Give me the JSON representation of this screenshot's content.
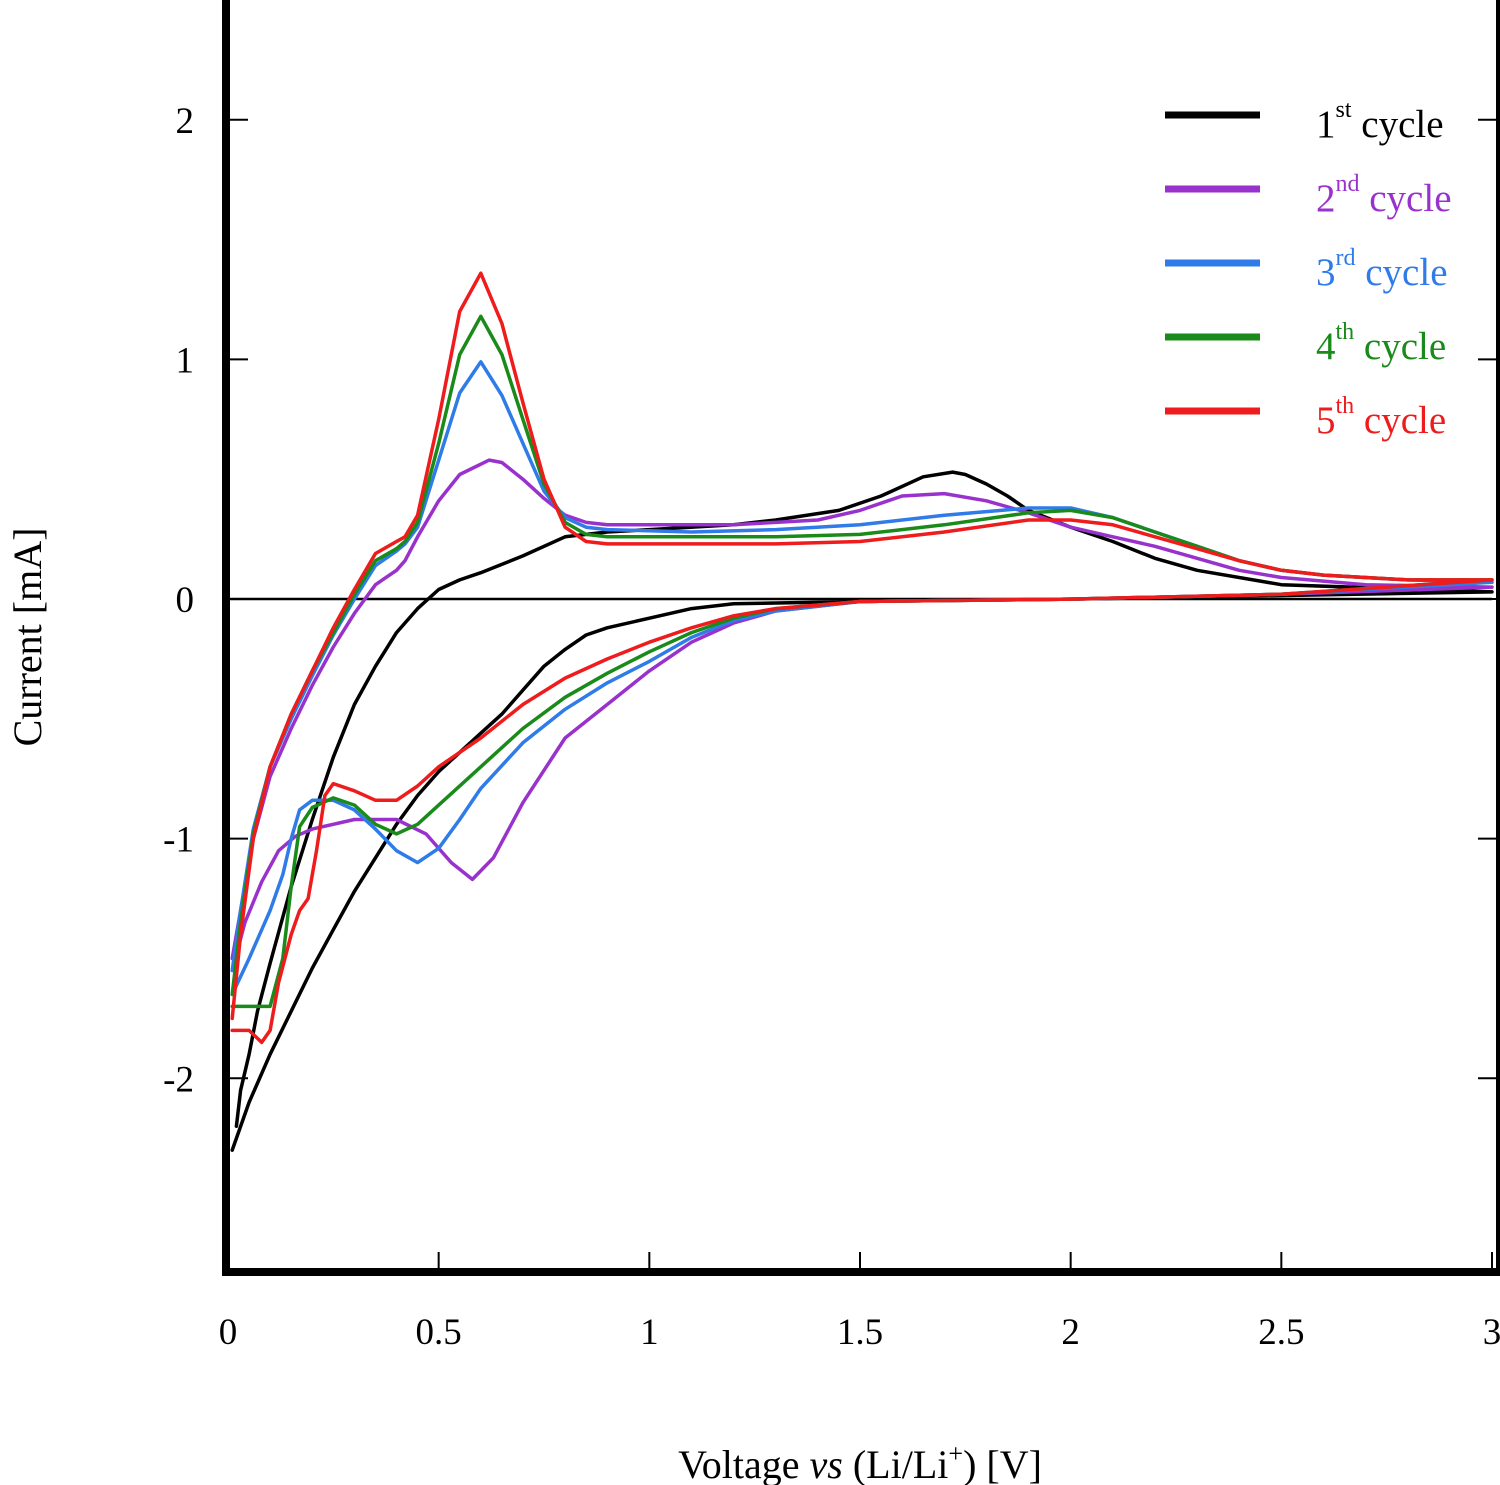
{
  "chart_data": {
    "type": "line",
    "title": "",
    "xlabel": {
      "pre": "Voltage ",
      "italic": "vs",
      "mid": " (Li/Li",
      "sup": "+",
      "post": ") [V]"
    },
    "ylabel": "Current [mA]",
    "xlim": [
      0,
      3
    ],
    "ylim": [
      -2.8,
      2.5
    ],
    "xticks": [
      0,
      0.5,
      1,
      1.5,
      2,
      2.5,
      3
    ],
    "xtick_labels": [
      "0",
      "0.5",
      "1",
      "1.5",
      "2",
      "2.5",
      "3"
    ],
    "yticks": [
      -2,
      -1,
      0,
      1,
      2
    ],
    "ytick_labels": [
      "-2",
      "-1",
      "0",
      "1",
      "2"
    ],
    "grid": false,
    "legend_position": "top-right",
    "series": [
      {
        "name": "1st cycle",
        "num": "1",
        "sup": "st",
        "word": " cycle",
        "color": "#000000",
        "points": [
          [
            0.01,
            -2.3
          ],
          [
            0.05,
            -2.1
          ],
          [
            0.1,
            -1.9
          ],
          [
            0.15,
            -1.72
          ],
          [
            0.2,
            -1.54
          ],
          [
            0.25,
            -1.38
          ],
          [
            0.3,
            -1.22
          ],
          [
            0.35,
            -1.08
          ],
          [
            0.4,
            -0.94
          ],
          [
            0.45,
            -0.82
          ],
          [
            0.5,
            -0.72
          ],
          [
            0.55,
            -0.64
          ],
          [
            0.6,
            -0.56
          ],
          [
            0.65,
            -0.48
          ],
          [
            0.7,
            -0.38
          ],
          [
            0.75,
            -0.28
          ],
          [
            0.8,
            -0.21
          ],
          [
            0.85,
            -0.15
          ],
          [
            0.9,
            -0.12
          ],
          [
            1.0,
            -0.08
          ],
          [
            1.1,
            -0.04
          ],
          [
            1.2,
            -0.02
          ],
          [
            1.5,
            -0.01
          ],
          [
            2.0,
            0.0
          ],
          [
            3.0,
            0.03
          ],
          [
            2.5,
            0.06
          ],
          [
            2.3,
            0.12
          ],
          [
            2.2,
            0.17
          ],
          [
            2.1,
            0.24
          ],
          [
            2.0,
            0.3
          ],
          [
            1.9,
            0.37
          ],
          [
            1.85,
            0.43
          ],
          [
            1.8,
            0.48
          ],
          [
            1.75,
            0.52
          ],
          [
            1.72,
            0.53
          ],
          [
            1.65,
            0.51
          ],
          [
            1.55,
            0.43
          ],
          [
            1.45,
            0.37
          ],
          [
            1.3,
            0.33
          ],
          [
            1.2,
            0.31
          ],
          [
            1.0,
            0.29
          ],
          [
            0.9,
            0.28
          ],
          [
            0.8,
            0.26
          ],
          [
            0.7,
            0.18
          ],
          [
            0.6,
            0.11
          ],
          [
            0.55,
            0.08
          ],
          [
            0.5,
            0.04
          ],
          [
            0.45,
            -0.04
          ],
          [
            0.4,
            -0.14
          ],
          [
            0.35,
            -0.28
          ],
          [
            0.3,
            -0.44
          ],
          [
            0.25,
            -0.66
          ],
          [
            0.2,
            -0.92
          ],
          [
            0.15,
            -1.2
          ],
          [
            0.1,
            -1.52
          ],
          [
            0.07,
            -1.72
          ],
          [
            0.05,
            -1.9
          ],
          [
            0.03,
            -2.05
          ],
          [
            0.02,
            -2.2
          ]
        ]
      },
      {
        "name": "2nd cycle",
        "num": "2",
        "sup": "nd",
        "word": " cycle",
        "color": "#9932CC",
        "points": [
          [
            0.01,
            -1.55
          ],
          [
            0.04,
            -1.35
          ],
          [
            0.08,
            -1.18
          ],
          [
            0.12,
            -1.05
          ],
          [
            0.16,
            -0.99
          ],
          [
            0.2,
            -0.96
          ],
          [
            0.3,
            -0.92
          ],
          [
            0.4,
            -0.92
          ],
          [
            0.47,
            -0.98
          ],
          [
            0.53,
            -1.1
          ],
          [
            0.58,
            -1.17
          ],
          [
            0.63,
            -1.08
          ],
          [
            0.7,
            -0.85
          ],
          [
            0.8,
            -0.58
          ],
          [
            0.9,
            -0.44
          ],
          [
            1.0,
            -0.3
          ],
          [
            1.1,
            -0.18
          ],
          [
            1.2,
            -0.1
          ],
          [
            1.3,
            -0.05
          ],
          [
            1.5,
            -0.01
          ],
          [
            2.0,
            0.0
          ],
          [
            2.5,
            0.02
          ],
          [
            3.0,
            0.05
          ],
          [
            2.7,
            0.06
          ],
          [
            2.5,
            0.09
          ],
          [
            2.4,
            0.12
          ],
          [
            2.3,
            0.17
          ],
          [
            2.2,
            0.22
          ],
          [
            2.1,
            0.26
          ],
          [
            2.0,
            0.3
          ],
          [
            1.9,
            0.36
          ],
          [
            1.8,
            0.41
          ],
          [
            1.7,
            0.44
          ],
          [
            1.6,
            0.43
          ],
          [
            1.5,
            0.37
          ],
          [
            1.4,
            0.33
          ],
          [
            1.3,
            0.32
          ],
          [
            1.2,
            0.31
          ],
          [
            1.0,
            0.31
          ],
          [
            0.9,
            0.31
          ],
          [
            0.85,
            0.32
          ],
          [
            0.8,
            0.35
          ],
          [
            0.75,
            0.42
          ],
          [
            0.7,
            0.5
          ],
          [
            0.65,
            0.57
          ],
          [
            0.62,
            0.58
          ],
          [
            0.55,
            0.52
          ],
          [
            0.5,
            0.41
          ],
          [
            0.45,
            0.26
          ],
          [
            0.42,
            0.16
          ],
          [
            0.4,
            0.12
          ],
          [
            0.35,
            0.06
          ],
          [
            0.3,
            -0.06
          ],
          [
            0.25,
            -0.2
          ],
          [
            0.2,
            -0.36
          ],
          [
            0.15,
            -0.54
          ],
          [
            0.1,
            -0.74
          ],
          [
            0.06,
            -1.0
          ],
          [
            0.03,
            -1.3
          ],
          [
            0.01,
            -1.5
          ]
        ]
      },
      {
        "name": "3rd cycle",
        "num": "3",
        "sup": "rd",
        "word": " cycle",
        "color": "#2F7BE8",
        "points": [
          [
            0.01,
            -1.65
          ],
          [
            0.05,
            -1.5
          ],
          [
            0.1,
            -1.3
          ],
          [
            0.13,
            -1.15
          ],
          [
            0.15,
            -1.0
          ],
          [
            0.17,
            -0.88
          ],
          [
            0.2,
            -0.84
          ],
          [
            0.25,
            -0.84
          ],
          [
            0.3,
            -0.88
          ],
          [
            0.35,
            -0.96
          ],
          [
            0.4,
            -1.05
          ],
          [
            0.45,
            -1.1
          ],
          [
            0.5,
            -1.04
          ],
          [
            0.55,
            -0.92
          ],
          [
            0.6,
            -0.79
          ],
          [
            0.7,
            -0.6
          ],
          [
            0.8,
            -0.46
          ],
          [
            0.9,
            -0.35
          ],
          [
            1.0,
            -0.26
          ],
          [
            1.1,
            -0.16
          ],
          [
            1.2,
            -0.09
          ],
          [
            1.3,
            -0.05
          ],
          [
            1.5,
            -0.01
          ],
          [
            2.0,
            0.0
          ],
          [
            2.5,
            0.02
          ],
          [
            3.0,
            0.07
          ],
          [
            2.8,
            0.08
          ],
          [
            2.6,
            0.1
          ],
          [
            2.5,
            0.12
          ],
          [
            2.4,
            0.16
          ],
          [
            2.3,
            0.22
          ],
          [
            2.2,
            0.28
          ],
          [
            2.1,
            0.34
          ],
          [
            2.0,
            0.38
          ],
          [
            1.9,
            0.38
          ],
          [
            1.7,
            0.35
          ],
          [
            1.5,
            0.31
          ],
          [
            1.3,
            0.29
          ],
          [
            1.1,
            0.28
          ],
          [
            0.9,
            0.29
          ],
          [
            0.85,
            0.3
          ],
          [
            0.8,
            0.34
          ],
          [
            0.75,
            0.45
          ],
          [
            0.7,
            0.65
          ],
          [
            0.65,
            0.85
          ],
          [
            0.6,
            0.99
          ],
          [
            0.55,
            0.86
          ],
          [
            0.5,
            0.58
          ],
          [
            0.45,
            0.3
          ],
          [
            0.42,
            0.23
          ],
          [
            0.4,
            0.2
          ],
          [
            0.35,
            0.14
          ],
          [
            0.3,
            0.0
          ],
          [
            0.25,
            -0.15
          ],
          [
            0.2,
            -0.32
          ],
          [
            0.15,
            -0.5
          ],
          [
            0.1,
            -0.7
          ],
          [
            0.06,
            -0.96
          ],
          [
            0.03,
            -1.3
          ],
          [
            0.01,
            -1.55
          ]
        ]
      },
      {
        "name": "4th cycle",
        "num": "4",
        "sup": "th",
        "word": " cycle",
        "color": "#1A8A1A",
        "points": [
          [
            0.01,
            -1.7
          ],
          [
            0.05,
            -1.7
          ],
          [
            0.1,
            -1.7
          ],
          [
            0.13,
            -1.5
          ],
          [
            0.15,
            -1.2
          ],
          [
            0.17,
            -0.95
          ],
          [
            0.2,
            -0.87
          ],
          [
            0.25,
            -0.83
          ],
          [
            0.3,
            -0.86
          ],
          [
            0.35,
            -0.94
          ],
          [
            0.4,
            -0.98
          ],
          [
            0.45,
            -0.94
          ],
          [
            0.5,
            -0.86
          ],
          [
            0.6,
            -0.7
          ],
          [
            0.7,
            -0.54
          ],
          [
            0.8,
            -0.41
          ],
          [
            0.9,
            -0.31
          ],
          [
            1.0,
            -0.22
          ],
          [
            1.1,
            -0.14
          ],
          [
            1.2,
            -0.08
          ],
          [
            1.3,
            -0.04
          ],
          [
            1.5,
            -0.01
          ],
          [
            2.0,
            0.0
          ],
          [
            2.5,
            0.02
          ],
          [
            3.0,
            0.08
          ],
          [
            2.8,
            0.08
          ],
          [
            2.6,
            0.1
          ],
          [
            2.5,
            0.12
          ],
          [
            2.4,
            0.16
          ],
          [
            2.3,
            0.22
          ],
          [
            2.2,
            0.28
          ],
          [
            2.1,
            0.34
          ],
          [
            2.0,
            0.37
          ],
          [
            1.9,
            0.36
          ],
          [
            1.7,
            0.31
          ],
          [
            1.5,
            0.27
          ],
          [
            1.3,
            0.26
          ],
          [
            1.1,
            0.26
          ],
          [
            0.9,
            0.26
          ],
          [
            0.85,
            0.27
          ],
          [
            0.8,
            0.32
          ],
          [
            0.75,
            0.48
          ],
          [
            0.7,
            0.75
          ],
          [
            0.65,
            1.02
          ],
          [
            0.6,
            1.18
          ],
          [
            0.55,
            1.02
          ],
          [
            0.5,
            0.65
          ],
          [
            0.45,
            0.32
          ],
          [
            0.42,
            0.24
          ],
          [
            0.4,
            0.21
          ],
          [
            0.35,
            0.16
          ],
          [
            0.3,
            0.02
          ],
          [
            0.25,
            -0.14
          ],
          [
            0.2,
            -0.3
          ],
          [
            0.15,
            -0.48
          ],
          [
            0.1,
            -0.7
          ],
          [
            0.06,
            -0.98
          ],
          [
            0.03,
            -1.35
          ],
          [
            0.01,
            -1.65
          ]
        ]
      },
      {
        "name": "5th cycle",
        "num": "5",
        "sup": "th",
        "word": " cycle",
        "color": "#EE1C1C",
        "points": [
          [
            0.01,
            -1.8
          ],
          [
            0.05,
            -1.8
          ],
          [
            0.08,
            -1.85
          ],
          [
            0.1,
            -1.8
          ],
          [
            0.12,
            -1.6
          ],
          [
            0.15,
            -1.4
          ],
          [
            0.17,
            -1.3
          ],
          [
            0.19,
            -1.25
          ],
          [
            0.21,
            -1.05
          ],
          [
            0.23,
            -0.82
          ],
          [
            0.25,
            -0.77
          ],
          [
            0.3,
            -0.8
          ],
          [
            0.35,
            -0.84
          ],
          [
            0.4,
            -0.84
          ],
          [
            0.45,
            -0.78
          ],
          [
            0.5,
            -0.7
          ],
          [
            0.6,
            -0.58
          ],
          [
            0.7,
            -0.44
          ],
          [
            0.8,
            -0.33
          ],
          [
            0.9,
            -0.25
          ],
          [
            1.0,
            -0.18
          ],
          [
            1.1,
            -0.12
          ],
          [
            1.2,
            -0.07
          ],
          [
            1.3,
            -0.04
          ],
          [
            1.5,
            -0.01
          ],
          [
            2.0,
            0.0
          ],
          [
            2.5,
            0.02
          ],
          [
            3.0,
            0.08
          ],
          [
            2.8,
            0.08
          ],
          [
            2.6,
            0.1
          ],
          [
            2.5,
            0.12
          ],
          [
            2.4,
            0.16
          ],
          [
            2.3,
            0.21
          ],
          [
            2.2,
            0.26
          ],
          [
            2.1,
            0.31
          ],
          [
            2.0,
            0.33
          ],
          [
            1.9,
            0.33
          ],
          [
            1.7,
            0.28
          ],
          [
            1.5,
            0.24
          ],
          [
            1.3,
            0.23
          ],
          [
            1.1,
            0.23
          ],
          [
            0.9,
            0.23
          ],
          [
            0.85,
            0.24
          ],
          [
            0.8,
            0.3
          ],
          [
            0.75,
            0.5
          ],
          [
            0.7,
            0.82
          ],
          [
            0.65,
            1.15
          ],
          [
            0.6,
            1.36
          ],
          [
            0.55,
            1.2
          ],
          [
            0.5,
            0.75
          ],
          [
            0.45,
            0.35
          ],
          [
            0.42,
            0.26
          ],
          [
            0.4,
            0.24
          ],
          [
            0.35,
            0.19
          ],
          [
            0.3,
            0.04
          ],
          [
            0.25,
            -0.12
          ],
          [
            0.2,
            -0.3
          ],
          [
            0.15,
            -0.48
          ],
          [
            0.1,
            -0.7
          ],
          [
            0.06,
            -1.0
          ],
          [
            0.03,
            -1.4
          ],
          [
            0.01,
            -1.75
          ]
        ]
      }
    ]
  }
}
